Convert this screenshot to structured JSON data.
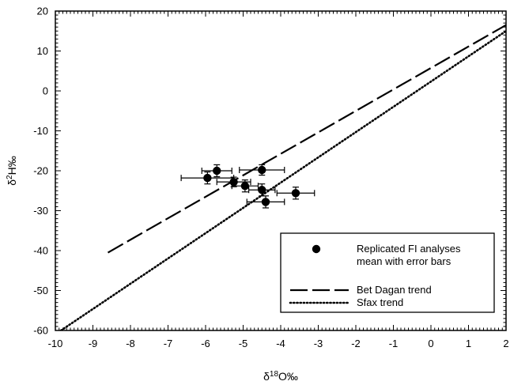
{
  "chart_data": {
    "type": "scatter",
    "title": "",
    "xlabel": {
      "pre": "δ",
      "sup": "18",
      "post": "O‰"
    },
    "ylabel": {
      "pre": "δ",
      "sup": "2",
      "post": "H‰"
    },
    "xlim": [
      -10,
      2
    ],
    "ylim": [
      -60,
      20
    ],
    "xticks": [
      -10,
      -9,
      -8,
      -7,
      -6,
      -5,
      -4,
      -3,
      -2,
      -1,
      0,
      1,
      2
    ],
    "yticks": [
      -60,
      -50,
      -40,
      -30,
      -20,
      -10,
      0,
      10,
      20
    ],
    "grid": false,
    "legend_position": "bottom-right",
    "series": [
      {
        "name": "Replicated FI analyses mean with error bars",
        "legend_lines": [
          "Replicated FI analyses",
          "mean with error bars"
        ],
        "kind": "points",
        "points": [
          {
            "x": -5.7,
            "y": -20.0,
            "xerr": 0.4,
            "yerr": 1.5
          },
          {
            "x": -5.95,
            "y": -21.8,
            "xerr": 0.7,
            "yerr": 1.5
          },
          {
            "x": -5.25,
            "y": -22.8,
            "xerr": 0.45,
            "yerr": 1.2
          },
          {
            "x": -4.95,
            "y": -23.8,
            "xerr": 0.35,
            "yerr": 1.5
          },
          {
            "x": -4.5,
            "y": -19.8,
            "xerr": 0.6,
            "yerr": 1.3
          },
          {
            "x": -4.5,
            "y": -24.8,
            "xerr": 0.35,
            "yerr": 1.5
          },
          {
            "x": -4.4,
            "y": -27.8,
            "xerr": 0.5,
            "yerr": 1.5
          },
          {
            "x": -3.6,
            "y": -25.6,
            "xerr": 0.5,
            "yerr": 1.5
          }
        ]
      },
      {
        "name": "Bet Dagan trend",
        "kind": "line",
        "style": "dashed",
        "x": [
          -8.6,
          2.0
        ],
        "y": [
          -40.5,
          16.5
        ]
      },
      {
        "name": "Sfax trend",
        "kind": "line",
        "style": "dotted",
        "x": [
          -9.85,
          2.0
        ],
        "y": [
          -60.0,
          15.0
        ]
      }
    ]
  }
}
